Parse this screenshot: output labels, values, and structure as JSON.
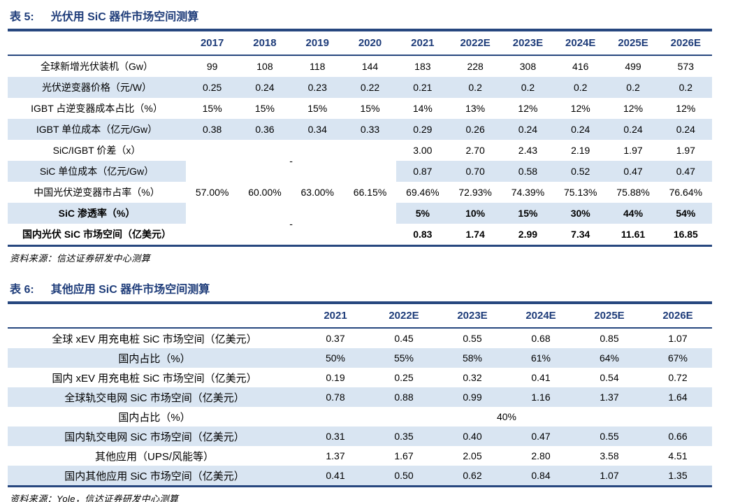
{
  "colors": {
    "navy_text": "#1F3D7A",
    "rule_line": "#27477F",
    "row_highlight": "#D9E5F2",
    "body_text": "#000000",
    "background": "#FFFFFF"
  },
  "table5": {
    "title_prefix": "表 5:",
    "title": "光伏用 SiC 器件市场空间测算",
    "columns": [
      "",
      "2017",
      "2018",
      "2019",
      "2020",
      "2021",
      "2022E",
      "2023E",
      "2024E",
      "2025E",
      "2026E"
    ],
    "rows": [
      {
        "label": "全球新增光伏装机（Gw）",
        "shaded": false,
        "bold": false,
        "values": [
          "99",
          "108",
          "118",
          "144",
          "183",
          "228",
          "308",
          "416",
          "499",
          "573"
        ]
      },
      {
        "label": "光伏逆变器价格（元/W）",
        "shaded": true,
        "bold": false,
        "values": [
          "0.25",
          "0.24",
          "0.23",
          "0.22",
          "0.21",
          "0.2",
          "0.2",
          "0.2",
          "0.2",
          "0.2"
        ]
      },
      {
        "label": "IGBT 占逆变器成本占比（%）",
        "shaded": false,
        "bold": false,
        "values": [
          "15%",
          "15%",
          "15%",
          "15%",
          "14%",
          "13%",
          "12%",
          "12%",
          "12%",
          "12%"
        ]
      },
      {
        "label": "IGBT 单位成本（亿元/Gw）",
        "shaded": true,
        "bold": false,
        "values": [
          "0.38",
          "0.36",
          "0.34",
          "0.33",
          "0.29",
          "0.26",
          "0.24",
          "0.24",
          "0.24",
          "0.24"
        ]
      },
      {
        "label": "SiC/IGBT 价差（x）",
        "shaded": false,
        "bold": false,
        "merge_start": true,
        "merge_text": "-",
        "values": [
          "3.00",
          "2.70",
          "2.43",
          "2.19",
          "1.97",
          "1.97"
        ]
      },
      {
        "label": "SiC 单位成本（亿元/Gw）",
        "shaded": true,
        "bold": false,
        "merge_covered": true,
        "values": [
          "0.87",
          "0.70",
          "0.58",
          "0.52",
          "0.47",
          "0.47"
        ]
      },
      {
        "label": "中国光伏逆变器市占率（%）",
        "shaded": false,
        "bold": false,
        "values": [
          "57.00%",
          "60.00%",
          "63.00%",
          "66.15%",
          "69.46%",
          "72.93%",
          "74.39%",
          "75.13%",
          "75.88%",
          "76.64%"
        ]
      },
      {
        "label": "SiC 渗透率（%）",
        "shaded": true,
        "bold": true,
        "merge_start": true,
        "merge_text": "-",
        "values": [
          "5%",
          "10%",
          "15%",
          "30%",
          "44%",
          "54%"
        ]
      },
      {
        "label": "国内光伏 SiC 市场空间（亿美元）",
        "shaded": false,
        "bold": true,
        "merge_covered": true,
        "values": [
          "0.83",
          "1.74",
          "2.99",
          "7.34",
          "11.61",
          "16.85"
        ]
      }
    ],
    "source": "资料来源：信达证券研发中心测算"
  },
  "table6": {
    "title_prefix": "表 6:",
    "title": "其他应用 SiC 器件市场空间测算",
    "columns": [
      "",
      "2021",
      "2022E",
      "2023E",
      "2024E",
      "2025E",
      "2026E"
    ],
    "rows": [
      {
        "label": "全球 xEV 用充电桩 SiC 市场空间（亿美元）",
        "shaded": false,
        "bold": false,
        "values": [
          "0.37",
          "0.45",
          "0.55",
          "0.68",
          "0.85",
          "1.07"
        ]
      },
      {
        "label": "国内占比（%）",
        "shaded": true,
        "bold": false,
        "values": [
          "50%",
          "55%",
          "58%",
          "61%",
          "64%",
          "67%"
        ]
      },
      {
        "label": "国内 xEV 用充电桩 SiC 市场空间（亿美元）",
        "shaded": false,
        "bold": false,
        "values": [
          "0.19",
          "0.25",
          "0.32",
          "0.41",
          "0.54",
          "0.72"
        ]
      },
      {
        "label": "全球轨交电网 SiC 市场空间（亿美元）",
        "shaded": true,
        "bold": false,
        "values": [
          "0.78",
          "0.88",
          "0.99",
          "1.16",
          "1.37",
          "1.64"
        ]
      },
      {
        "label": "国内占比（%）",
        "shaded": false,
        "bold": false,
        "span_all": "40%"
      },
      {
        "label": "国内轨交电网 SiC 市场空间（亿美元）",
        "shaded": true,
        "bold": false,
        "values": [
          "0.31",
          "0.35",
          "0.40",
          "0.47",
          "0.55",
          "0.66"
        ]
      },
      {
        "label": "其他应用（UPS/风能等）",
        "shaded": false,
        "bold": false,
        "values": [
          "1.37",
          "1.67",
          "2.05",
          "2.80",
          "3.58",
          "4.51"
        ]
      },
      {
        "label": "国内其他应用 SiC 市场空间（亿美元）",
        "shaded": true,
        "bold": false,
        "values": [
          "0.41",
          "0.50",
          "0.62",
          "0.84",
          "1.07",
          "1.35"
        ]
      }
    ],
    "source": "资料来源：Yole，信达证券研发中心测算"
  }
}
